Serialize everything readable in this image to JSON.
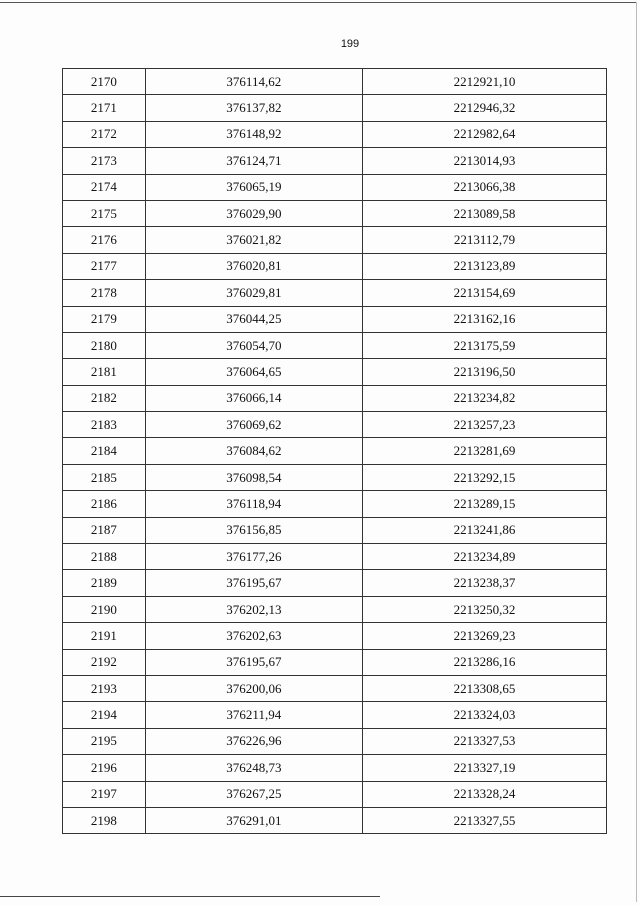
{
  "page_number": "199",
  "table": {
    "rows": [
      [
        "2170",
        "376114,62",
        "2212921,10"
      ],
      [
        "2171",
        "376137,82",
        "2212946,32"
      ],
      [
        "2172",
        "376148,92",
        "2212982,64"
      ],
      [
        "2173",
        "376124,71",
        "2213014,93"
      ],
      [
        "2174",
        "376065,19",
        "2213066,38"
      ],
      [
        "2175",
        "376029,90",
        "2213089,58"
      ],
      [
        "2176",
        "376021,82",
        "2213112,79"
      ],
      [
        "2177",
        "376020,81",
        "2213123,89"
      ],
      [
        "2178",
        "376029,81",
        "2213154,69"
      ],
      [
        "2179",
        "376044,25",
        "2213162,16"
      ],
      [
        "2180",
        "376054,70",
        "2213175,59"
      ],
      [
        "2181",
        "376064,65",
        "2213196,50"
      ],
      [
        "2182",
        "376066,14",
        "2213234,82"
      ],
      [
        "2183",
        "376069,62",
        "2213257,23"
      ],
      [
        "2184",
        "376084,62",
        "2213281,69"
      ],
      [
        "2185",
        "376098,54",
        "2213292,15"
      ],
      [
        "2186",
        "376118,94",
        "2213289,15"
      ],
      [
        "2187",
        "376156,85",
        "2213241,86"
      ],
      [
        "2188",
        "376177,26",
        "2213234,89"
      ],
      [
        "2189",
        "376195,67",
        "2213238,37"
      ],
      [
        "2190",
        "376202,13",
        "2213250,32"
      ],
      [
        "2191",
        "376202,63",
        "2213269,23"
      ],
      [
        "2192",
        "376195,67",
        "2213286,16"
      ],
      [
        "2193",
        "376200,06",
        "2213308,65"
      ],
      [
        "2194",
        "376211,94",
        "2213324,03"
      ],
      [
        "2195",
        "376226,96",
        "2213327,53"
      ],
      [
        "2196",
        "376248,73",
        "2213327,19"
      ],
      [
        "2197",
        "376267,25",
        "2213328,24"
      ],
      [
        "2198",
        "376291,01",
        "2213327,55"
      ]
    ]
  }
}
